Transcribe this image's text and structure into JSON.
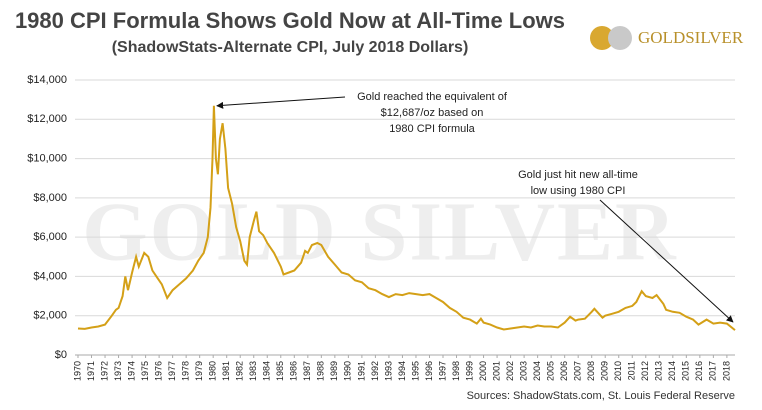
{
  "chart_data": {
    "type": "line",
    "title": "1980 CPI Formula Shows Gold Now at All-Time Lows",
    "subtitle": "(ShadowStats-Alternate CPI, July 2018 Dollars)",
    "logo": "GOLDSILVER",
    "watermark": "GOLD SILVER",
    "source": "Sources: ShadowStats.com, St. Louis Federal Reserve",
    "annotations": [
      {
        "lines": [
          "Gold reached the equivalent of",
          "$12,687/oz based on",
          "1980 CPI formula"
        ]
      },
      {
        "lines": [
          "Gold just hit new all-time",
          "low using 1980 CPI"
        ]
      }
    ],
    "xlim": [
      1970,
      2018.6
    ],
    "xticks": [
      1970,
      1971,
      1972,
      1973,
      1974,
      1975,
      1976,
      1977,
      1978,
      1979,
      1980,
      1981,
      1982,
      1983,
      1984,
      1985,
      1986,
      1987,
      1988,
      1989,
      1990,
      1991,
      1992,
      1993,
      1994,
      1995,
      1996,
      1997,
      1998,
      1999,
      2000,
      2001,
      2002,
      2003,
      2004,
      2005,
      2006,
      2007,
      2008,
      2009,
      2010,
      2011,
      2012,
      2013,
      2014,
      2015,
      2016,
      2017,
      2018
    ],
    "ylim": [
      0,
      14000
    ],
    "yticks": [
      {
        "value": 0,
        "label": "$0"
      },
      {
        "value": 2000,
        "label": "$2,000"
      },
      {
        "value": 4000,
        "label": "$4,000"
      },
      {
        "value": 6000,
        "label": "$6,000"
      },
      {
        "value": 8000,
        "label": "$8,000"
      },
      {
        "value": 10000,
        "label": "$10,000"
      },
      {
        "value": 12000,
        "label": "$12,000"
      },
      {
        "value": 14000,
        "label": "$14,000"
      }
    ],
    "grid": true,
    "series": [
      {
        "color": "#d4a017",
        "x": [
          1970.0,
          1970.5,
          1971.0,
          1971.5,
          1972.0,
          1972.5,
          1972.8,
          1973.0,
          1973.3,
          1973.5,
          1973.7,
          1974.0,
          1974.3,
          1974.5,
          1974.9,
          1975.2,
          1975.5,
          1975.8,
          1976.2,
          1976.6,
          1977.0,
          1977.5,
          1978.0,
          1978.5,
          1978.9,
          1979.3,
          1979.6,
          1979.8,
          1979.95,
          1980.05,
          1980.2,
          1980.35,
          1980.5,
          1980.7,
          1980.9,
          1981.1,
          1981.4,
          1981.7,
          1982.0,
          1982.3,
          1982.5,
          1982.7,
          1983.0,
          1983.2,
          1983.4,
          1983.7,
          1984.0,
          1984.5,
          1985.0,
          1985.2,
          1985.6,
          1986.0,
          1986.5,
          1986.8,
          1987.0,
          1987.3,
          1987.7,
          1988.0,
          1988.5,
          1989.0,
          1989.5,
          1990.0,
          1990.5,
          1991.0,
          1991.5,
          1992.0,
          1992.5,
          1993.0,
          1993.5,
          1994.0,
          1994.5,
          1995.0,
          1995.5,
          1996.0,
          1996.5,
          1997.0,
          1997.5,
          1998.0,
          1998.5,
          1999.0,
          1999.5,
          1999.8,
          2000.0,
          2000.5,
          2001.0,
          2001.5,
          2002.0,
          2002.5,
          2003.0,
          2003.5,
          2004.0,
          2004.5,
          2005.0,
          2005.5,
          2006.0,
          2006.4,
          2006.8,
          2007.0,
          2007.5,
          2008.0,
          2008.2,
          2008.8,
          2009.0,
          2009.5,
          2010.0,
          2010.5,
          2011.0,
          2011.3,
          2011.7,
          2012.0,
          2012.5,
          2012.8,
          2013.3,
          2013.5,
          2014.0,
          2014.5,
          2015.0,
          2015.5,
          2015.9,
          2016.5,
          2017.0,
          2017.5,
          2018.0,
          2018.6
        ],
        "values": [
          1350,
          1330,
          1400,
          1450,
          1550,
          2000,
          2300,
          2400,
          3000,
          4000,
          3300,
          4200,
          5000,
          4500,
          5200,
          5000,
          4300,
          4000,
          3600,
          2900,
          3300,
          3600,
          3900,
          4300,
          4800,
          5200,
          6000,
          7500,
          10000,
          12687,
          10000,
          9200,
          11000,
          11800,
          10500,
          8500,
          7700,
          6500,
          5800,
          4800,
          4600,
          6000,
          6800,
          7300,
          6300,
          6100,
          5700,
          5200,
          4500,
          4100,
          4200,
          4300,
          4700,
          5300,
          5200,
          5600,
          5700,
          5600,
          5000,
          4600,
          4200,
          4100,
          3800,
          3700,
          3400,
          3300,
          3100,
          2950,
          3100,
          3050,
          3150,
          3100,
          3050,
          3100,
          2900,
          2700,
          2400,
          2200,
          1900,
          1800,
          1600,
          1850,
          1650,
          1550,
          1400,
          1300,
          1350,
          1400,
          1450,
          1400,
          1500,
          1450,
          1450,
          1400,
          1650,
          1950,
          1750,
          1800,
          1850,
          2200,
          2350,
          1900,
          2000,
          2100,
          2200,
          2400,
          2500,
          2700,
          3250,
          3000,
          2900,
          3050,
          2600,
          2300,
          2200,
          2150,
          1950,
          1800,
          1550,
          1800,
          1600,
          1650,
          1600,
          1270
        ]
      }
    ]
  }
}
